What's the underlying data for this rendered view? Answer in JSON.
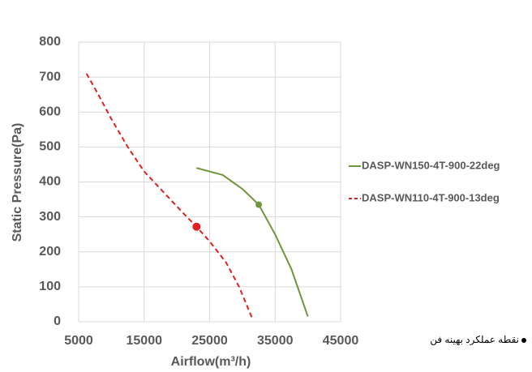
{
  "chart_data": {
    "type": "line",
    "x_label": "Airflow(m³/h)",
    "y_label": "Static Pressure(Pa)",
    "xlim": [
      5000,
      45000
    ],
    "xticks": [
      5000,
      15000,
      25000,
      35000,
      45000
    ],
    "ylim": [
      0,
      800
    ],
    "yticks": [
      0,
      100,
      200,
      300,
      400,
      500,
      600,
      700,
      800
    ],
    "grid": true,
    "legend": "right",
    "series": [
      {
        "name": "DASP-WN150-4T-900-22deg",
        "color": "#70953a",
        "dashed": false,
        "x": [
          23000,
          27000,
          30000,
          32500,
          35000,
          37500,
          40000
        ],
        "values": [
          440,
          420,
          380,
          335,
          250,
          150,
          15
        ],
        "point": {
          "x": 32500,
          "y": 335
        }
      },
      {
        "name": "DASP-WN110-4T-900-13deg",
        "color": "#e02020",
        "dashed": true,
        "x": [
          6200,
          8000,
          10000,
          12500,
          15000,
          18000,
          21000,
          23000,
          25000,
          27500,
          29500,
          31500
        ],
        "values": [
          710,
          650,
          580,
          500,
          430,
          370,
          310,
          272,
          230,
          170,
          100,
          10
        ],
        "point": {
          "x": 23000,
          "y": 272
        }
      }
    ],
    "annotation": "نقطه عملکرد بهینه فن"
  }
}
